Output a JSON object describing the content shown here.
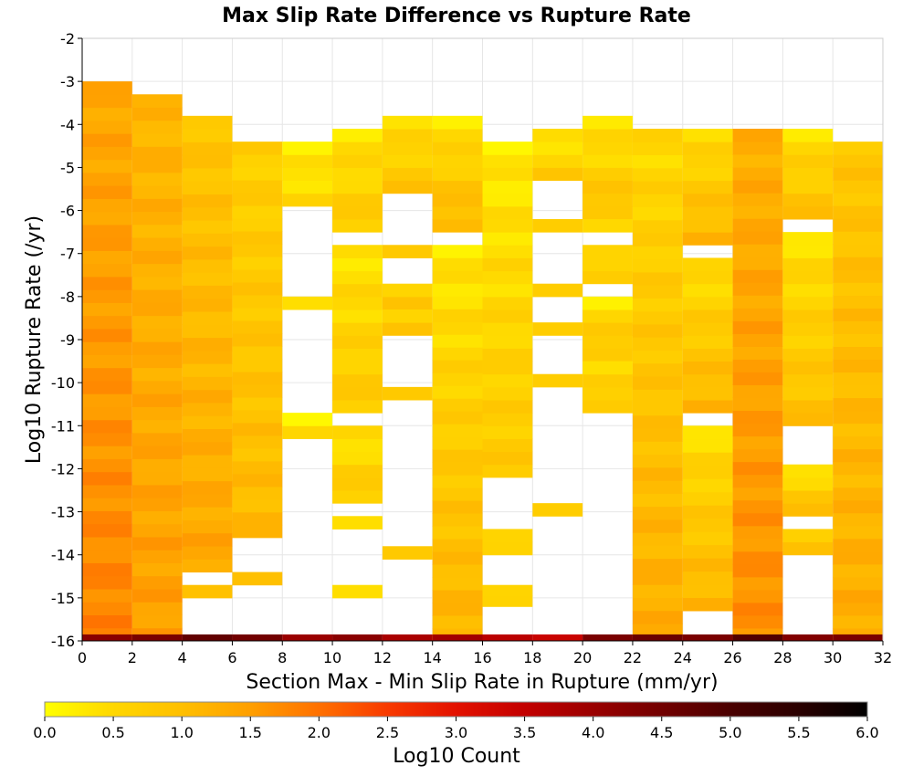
{
  "chart_data": {
    "type": "heatmap",
    "title": "Max Slip Rate Difference vs Rupture Rate",
    "xlabel": "Section Max - Min Slip Rate in Rupture (mm/yr)",
    "ylabel": "Log10 Rupture Rate (/yr)",
    "xlim": [
      0,
      32
    ],
    "ylim": [
      -16,
      -2
    ],
    "x_bin_width": 2,
    "y_bin_height": 0.3,
    "x_ticks": [
      "0",
      "2",
      "4",
      "6",
      "8",
      "10",
      "12",
      "14",
      "16",
      "18",
      "20",
      "22",
      "24",
      "26",
      "28",
      "30",
      "32"
    ],
    "y_ticks": [
      "-2",
      "-3",
      "-4",
      "-5",
      "-6",
      "-7",
      "-8",
      "-9",
      "-10",
      "-11",
      "-12",
      "-13",
      "-14",
      "-15",
      "-16"
    ],
    "colorbar": {
      "label": "Log10 Count",
      "range": [
        0,
        6
      ],
      "ticks": [
        "0.0",
        "0.5",
        "1.0",
        "1.5",
        "2.0",
        "2.5",
        "3.0",
        "3.5",
        "4.0",
        "4.5",
        "5.0",
        "5.5",
        "6.0"
      ],
      "stops": [
        {
          "value": 0.0,
          "color": "#ffff00"
        },
        {
          "value": 0.5,
          "color": "#ffd700"
        },
        {
          "value": 1.0,
          "color": "#ffbf00"
        },
        {
          "value": 1.5,
          "color": "#ff9f00"
        },
        {
          "value": 2.0,
          "color": "#ff7000"
        },
        {
          "value": 2.5,
          "color": "#f83a00"
        },
        {
          "value": 3.0,
          "color": "#e31100"
        },
        {
          "value": 3.5,
          "color": "#c30000"
        },
        {
          "value": 4.0,
          "color": "#9a0000"
        },
        {
          "value": 4.5,
          "color": "#720000"
        },
        {
          "value": 5.0,
          "color": "#4a0000"
        },
        {
          "value": 5.5,
          "color": "#2a0000"
        },
        {
          "value": 6.0,
          "color": "#000000"
        }
      ]
    },
    "columns": [
      {
        "x_start": 0,
        "y_ranges": [
          [
            -16,
            -3.0
          ]
        ],
        "value_low": 1.3,
        "value_high": 1.8,
        "bottom_value": 4.2
      },
      {
        "x_start": 2,
        "y_ranges": [
          [
            -16,
            -3.3
          ]
        ],
        "value_low": 1.1,
        "value_high": 1.5,
        "bottom_value": 4.4
      },
      {
        "x_start": 4,
        "y_ranges": [
          [
            -14.4,
            -3.8
          ],
          [
            -15.0,
            -14.7
          ]
        ],
        "value_low": 0.8,
        "value_high": 1.4,
        "bottom_value": 4.7
      },
      {
        "x_start": 6,
        "y_ranges": [
          [
            -13.6,
            -4.4
          ],
          [
            -14.7,
            -14.4
          ]
        ],
        "value_low": 0.6,
        "value_high": 1.1,
        "bottom_value": 4.5
      },
      {
        "x_start": 8,
        "y_ranges": [
          [
            -5.9,
            -4.4
          ],
          [
            -8.3,
            -8.0
          ],
          [
            -11.3,
            -10.7
          ]
        ],
        "value_low": 0.1,
        "value_high": 0.6,
        "bottom_value": 4.0
      },
      {
        "x_start": 10,
        "y_ranges": [
          [
            -6.5,
            -4.1
          ],
          [
            -10.7,
            -6.8
          ],
          [
            -12.8,
            -11.0
          ],
          [
            -13.4,
            -13.1
          ],
          [
            -15.0,
            -14.7
          ]
        ],
        "value_low": 0.3,
        "value_high": 0.8,
        "bottom_value": 4.2
      },
      {
        "x_start": 12,
        "y_ranges": [
          [
            -5.6,
            -3.8
          ],
          [
            -7.1,
            -6.8
          ],
          [
            -8.3,
            -7.7
          ],
          [
            -8.9,
            -8.3
          ],
          [
            -10.4,
            -10.1
          ],
          [
            -14.1,
            -13.8
          ]
        ],
        "value_low": 0.3,
        "value_high": 0.9,
        "bottom_value": 3.8
      },
      {
        "x_start": 14,
        "y_ranges": [
          [
            -6.5,
            -3.8
          ],
          [
            -16,
            -6.8
          ]
        ],
        "value_low": 0.2,
        "value_high": 1.2,
        "bottom_value": 3.9
      },
      {
        "x_start": 16,
        "y_ranges": [
          [
            -12.2,
            -4.4
          ],
          [
            -14.0,
            -13.4
          ],
          [
            -15.2,
            -14.7
          ]
        ],
        "value_low": 0.2,
        "value_high": 0.8,
        "bottom_value": 3.6
      },
      {
        "x_start": 18,
        "y_ranges": [
          [
            -5.3,
            -4.1
          ],
          [
            -6.5,
            -6.2
          ],
          [
            -8.0,
            -7.7
          ],
          [
            -8.9,
            -8.6
          ],
          [
            -10.1,
            -9.8
          ],
          [
            -13.1,
            -12.8
          ]
        ],
        "value_low": 0.2,
        "value_high": 0.8,
        "bottom_value": 3.4
      },
      {
        "x_start": 20,
        "y_ranges": [
          [
            -6.2,
            -3.8
          ],
          [
            -6.5,
            -6.2
          ],
          [
            -7.7,
            -6.8
          ],
          [
            -9.5,
            -8.0
          ],
          [
            -10.7,
            -9.5
          ]
        ],
        "value_low": 0.2,
        "value_high": 1.0,
        "bottom_value": 4.4
      },
      {
        "x_start": 22,
        "y_ranges": [
          [
            -15.9,
            -4.1
          ]
        ],
        "value_low": 0.4,
        "value_high": 1.3,
        "bottom_value": 4.6
      },
      {
        "x_start": 24,
        "y_ranges": [
          [
            -6.8,
            -4.1
          ],
          [
            -10.7,
            -7.1
          ],
          [
            -15.3,
            -11.0
          ]
        ],
        "value_low": 0.3,
        "value_high": 1.2,
        "bottom_value": 4.4
      },
      {
        "x_start": 26,
        "y_ranges": [
          [
            -16,
            -4.1
          ]
        ],
        "value_low": 1.2,
        "value_high": 1.7,
        "bottom_value": 4.9
      },
      {
        "x_start": 28,
        "y_ranges": [
          [
            -6.2,
            -4.1
          ],
          [
            -11.0,
            -6.5
          ],
          [
            -13.1,
            -11.9
          ],
          [
            -14.0,
            -13.4
          ]
        ],
        "value_low": 0.3,
        "value_high": 1.0,
        "bottom_value": 4.3
      },
      {
        "x_start": 30,
        "y_ranges": [
          [
            -16,
            -4.4
          ]
        ],
        "value_low": 0.8,
        "value_high": 1.3,
        "bottom_value": 4.4
      }
    ]
  }
}
